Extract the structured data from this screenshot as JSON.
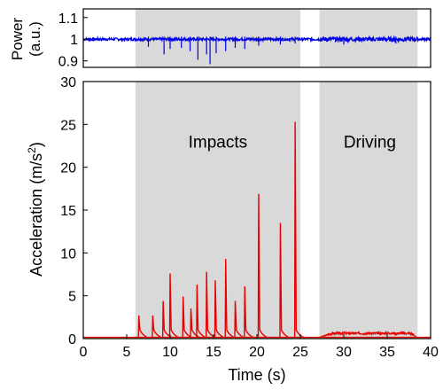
{
  "chart_data": [
    {
      "type": "line",
      "ylabel_line1": "Power",
      "ylabel_line2": "(a.u.)",
      "ylim": [
        0.87,
        1.14
      ],
      "xlim": [
        0,
        40
      ],
      "yticks": [
        0.9,
        1,
        1.1
      ],
      "ytick_labels": [
        "0.9",
        "1",
        "1.1"
      ],
      "colors": {
        "line": "#0000e6",
        "shade": "#d9d9d9"
      },
      "baseline": 1.0,
      "shaded_regions": [
        [
          6,
          25
        ],
        [
          27.2,
          38.5
        ]
      ],
      "series": [
        {
          "x": [
            7.5,
            9.3,
            10.0,
            11.3,
            12.3,
            13.2,
            14.2,
            14.6,
            15.3,
            16.4,
            17.5,
            18.6,
            20.2,
            22.7,
            24.4,
            30.0,
            36.0
          ],
          "y": [
            0.965,
            0.93,
            0.955,
            0.96,
            0.945,
            0.905,
            0.93,
            0.885,
            0.935,
            0.945,
            0.96,
            0.955,
            0.97,
            0.975,
            0.98,
            0.975,
            0.98
          ]
        }
      ]
    },
    {
      "type": "line",
      "xlabel": "Time (s)",
      "ylabel": "Acceleration (m/s",
      "ylabel_sup": "2",
      "ylabel_end": ")",
      "xlim": [
        0,
        40
      ],
      "ylim": [
        0,
        30
      ],
      "xticks": [
        0,
        5,
        10,
        15,
        20,
        25,
        30,
        35,
        40
      ],
      "xtick_labels": [
        "0",
        "5",
        "10",
        "15",
        "20",
        "25",
        "30",
        "35",
        "40"
      ],
      "yticks": [
        0,
        5,
        10,
        15,
        20,
        25,
        30
      ],
      "ytick_labels": [
        "0",
        "5",
        "10",
        "15",
        "20",
        "25",
        "30"
      ],
      "colors": {
        "line": "#e60000",
        "shade": "#d9d9d9"
      },
      "shaded_regions": [
        [
          6,
          25
        ],
        [
          27.2,
          38.5
        ]
      ],
      "annotations": [
        {
          "text": "Impacts",
          "x": 15.5,
          "y": 23
        },
        {
          "text": "Driving",
          "x": 33,
          "y": 23
        }
      ],
      "series": [
        {
          "peaks_x": [
            6.4,
            8.0,
            9.2,
            10.0,
            11.5,
            12.4,
            13.1,
            14.2,
            15.2,
            16.4,
            17.5,
            18.6,
            20.2,
            22.7,
            24.4
          ],
          "peaks_y": [
            2.7,
            2.7,
            4.4,
            7.6,
            4.9,
            3.5,
            6.3,
            7.8,
            6.8,
            9.3,
            4.4,
            6.1,
            16.9,
            13.5,
            25.3
          ],
          "driving_level": 0.6
        }
      ]
    }
  ]
}
